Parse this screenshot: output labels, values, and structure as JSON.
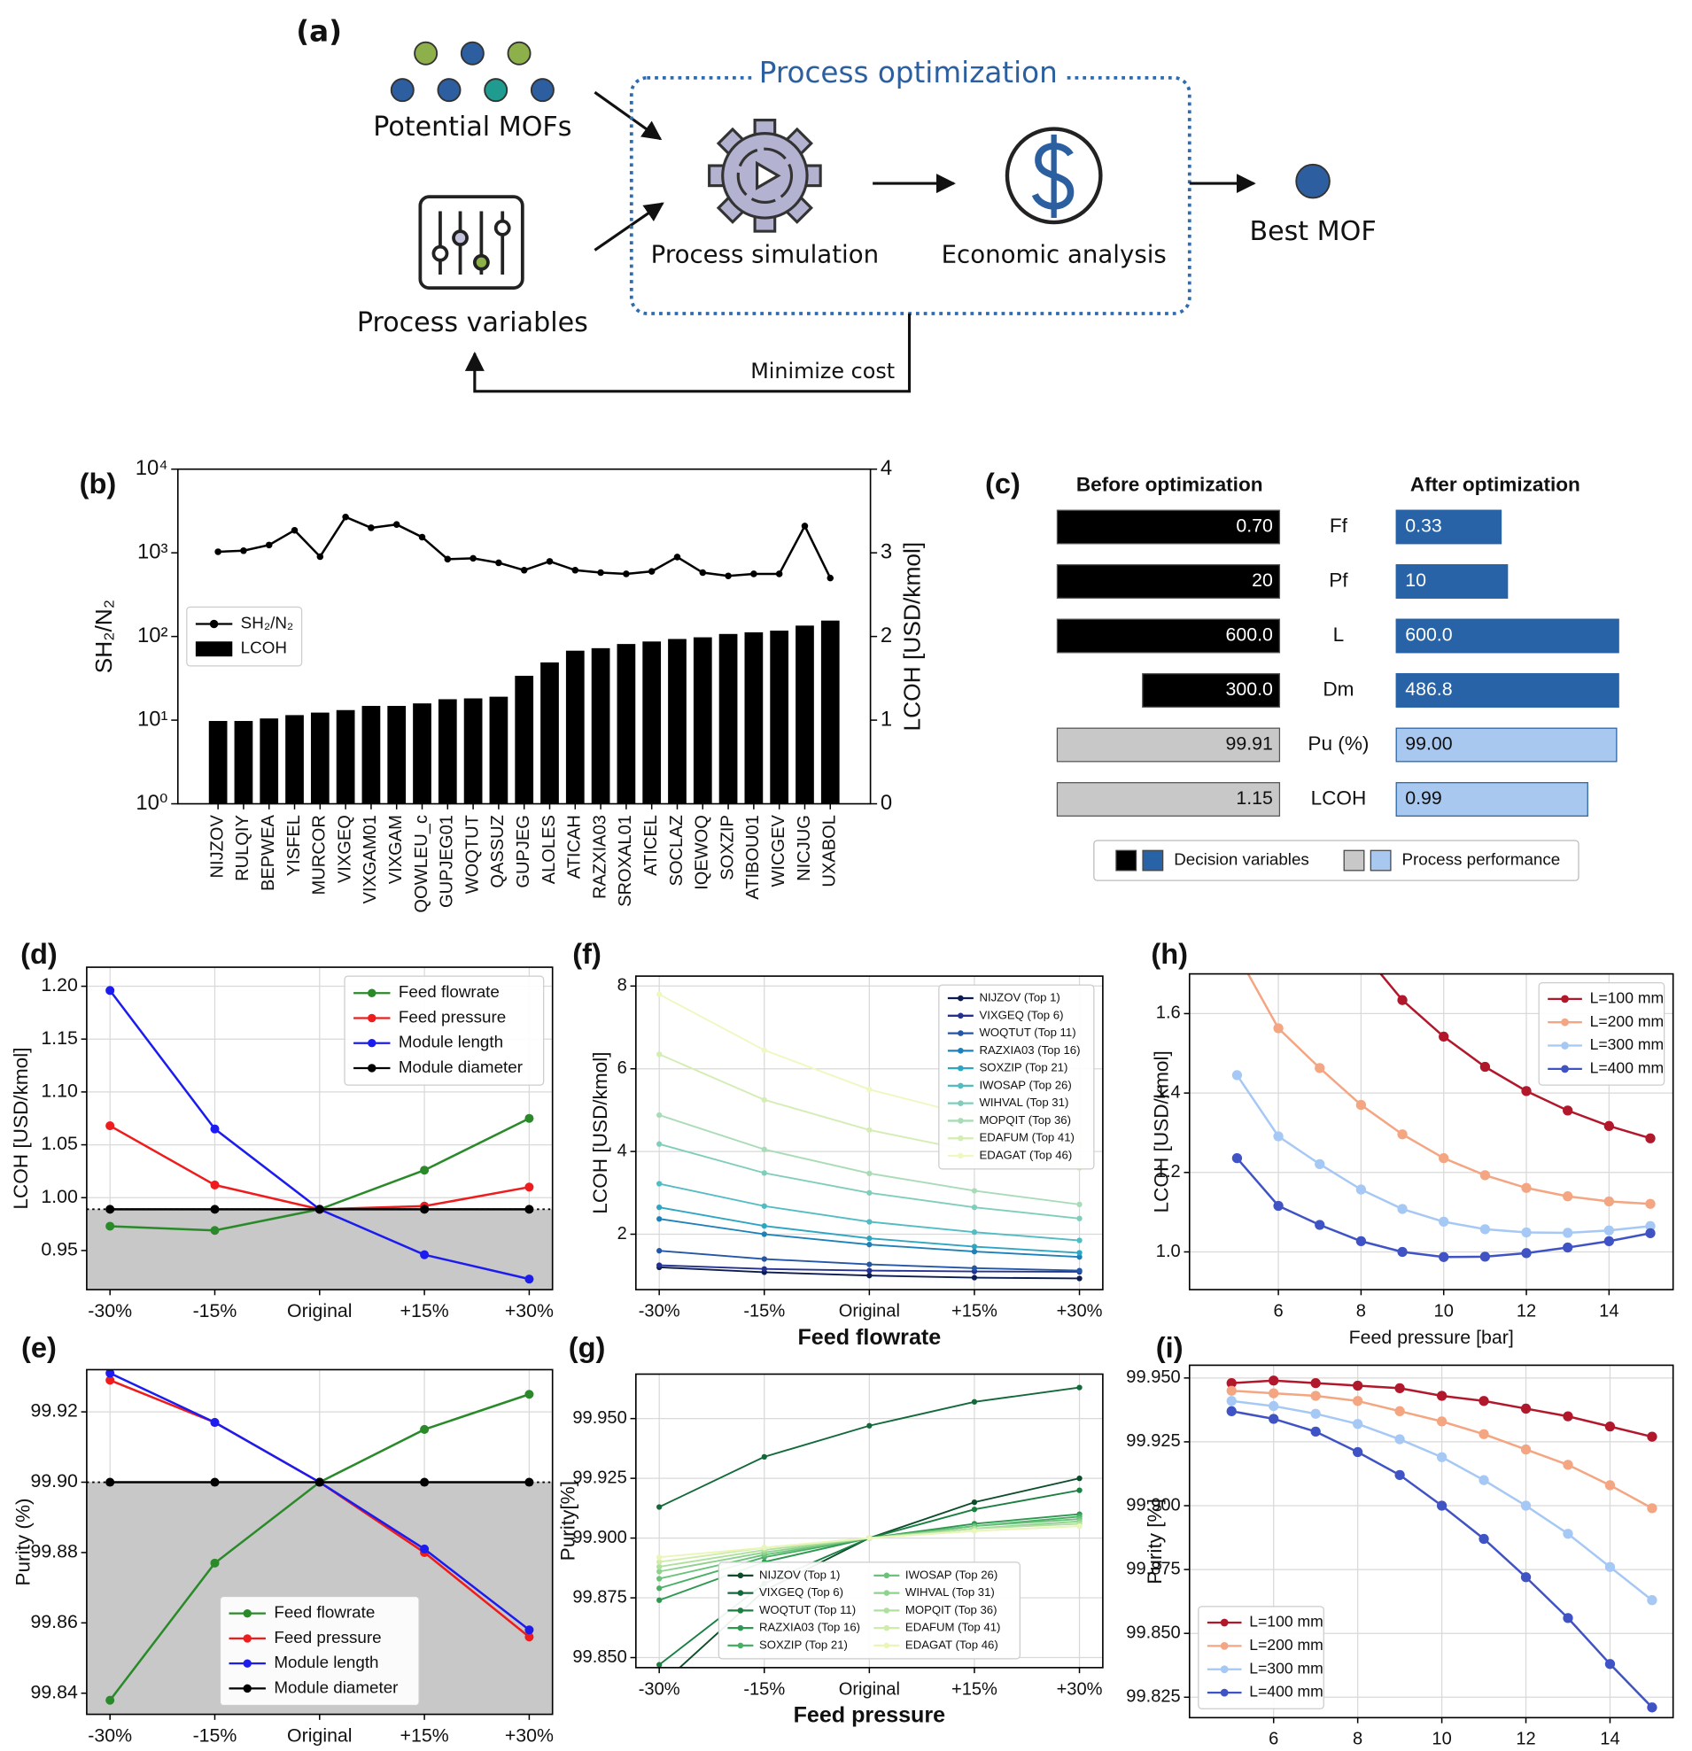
{
  "diagram": {
    "panel_label": "(a)",
    "group_title": "Process optimization",
    "inputs": [
      "Potential MOFs",
      "Process variables"
    ],
    "steps": [
      "Process simulation",
      "Economic analysis"
    ],
    "output": "Best MOF",
    "feedback": "Minimize cost"
  },
  "chart_data": [
    {
      "type": "combo",
      "label": "(b)",
      "categories": [
        "NIJZOV",
        "RULQIY",
        "BEPWEA",
        "YISFEL",
        "MURCOR",
        "VIXGEQ",
        "VIXGAM01",
        "VIXGAM",
        "QOWLEU_c",
        "GUPJEG01",
        "WOQTUT",
        "QASSUZ",
        "GUPJEG",
        "ALOLES",
        "ATICAH",
        "RAZXIA03",
        "SROXAL01",
        "ATICEL",
        "SOCLAZ",
        "IQEWOQ",
        "SOXZIP",
        "ATIBOU01",
        "WICGEV",
        "NICJUG",
        "UXABOL"
      ],
      "series": [
        {
          "name": "SH₂/N₂",
          "mark": "line",
          "color": "#000000",
          "values": [
            1030,
            1060,
            1240,
            1860,
            900,
            2680,
            1990,
            2180,
            1540,
            840,
            860,
            760,
            620,
            790,
            620,
            580,
            560,
            600,
            890,
            580,
            530,
            560,
            560,
            2090,
            500
          ]
        },
        {
          "name": "LCOH",
          "mark": "bar",
          "axis": "y2",
          "color": "#000000",
          "values": [
            0.99,
            0.99,
            1.02,
            1.06,
            1.09,
            1.12,
            1.17,
            1.17,
            1.2,
            1.25,
            1.26,
            1.28,
            1.53,
            1.69,
            1.83,
            1.86,
            1.91,
            1.94,
            1.97,
            1.99,
            2.03,
            2.05,
            2.07,
            2.13,
            2.19
          ]
        }
      ],
      "ylabel": "SH₂/N₂",
      "y2label": "LCOH [USD/kmol]",
      "ylog": true,
      "ylim": [
        1,
        10000
      ],
      "yticks": [
        {
          "value": 1,
          "label": "10⁰"
        },
        {
          "value": 10,
          "label": "10¹"
        },
        {
          "value": 100,
          "label": "10²"
        },
        {
          "value": 1000,
          "label": "10³"
        },
        {
          "value": 10000,
          "label": "10⁴"
        }
      ],
      "y2lim": [
        0,
        4
      ],
      "y2ticks": [
        0,
        1,
        2,
        3,
        4
      ],
      "legend": "center left"
    },
    {
      "type": "paired_bar",
      "label": "(c)",
      "categories": [
        "Ff",
        "Pf",
        "L",
        "Dm",
        "Pu (%)",
        "LCOH"
      ],
      "series": [
        {
          "name": "Before optimization",
          "values": [
            0.7,
            20,
            600.0,
            300.0,
            99.91,
            1.15
          ],
          "value_labels": [
            "0.70",
            "20",
            "600.0",
            "300.0",
            "99.91",
            "1.15"
          ],
          "colors": [
            "#000000",
            "#000000",
            "#000000",
            "#000000",
            "#c8c8c8",
            "#c8c8c8"
          ]
        },
        {
          "name": "After optimization",
          "values": [
            0.33,
            10,
            600.0,
            486.8,
            99.0,
            0.99
          ],
          "value_labels": [
            "0.33",
            "10",
            "600.0",
            "486.8",
            "99.00",
            "0.99"
          ],
          "colors": [
            "#2763a6",
            "#2763a6",
            "#2763a6",
            "#2763a6",
            "#a8c8ef",
            "#a8c8ef"
          ]
        }
      ],
      "legend_items": [
        {
          "name": "Decision variables",
          "colors": [
            "#000000",
            "#2763a6"
          ]
        },
        {
          "name": "Process performance",
          "colors": [
            "#c8c8c8",
            "#a8c8ef"
          ]
        }
      ]
    },
    {
      "type": "line",
      "label": "(d)",
      "categories": [
        "-30%",
        "-15%",
        "Original",
        "+15%",
        "+30%"
      ],
      "series": [
        {
          "name": "Feed flowrate",
          "color": "#2a8a2a",
          "values": [
            0.973,
            0.969,
            0.989,
            1.026,
            1.075
          ]
        },
        {
          "name": "Feed pressure",
          "color": "#ee1c1c",
          "values": [
            1.068,
            1.012,
            0.989,
            0.992,
            1.01
          ]
        },
        {
          "name": "Module length",
          "color": "#1c1cee",
          "values": [
            1.196,
            1.065,
            0.989,
            0.946,
            0.923
          ]
        },
        {
          "name": "Module diameter",
          "color": "#000000",
          "values": [
            0.989,
            0.989,
            0.989,
            0.989,
            0.989
          ]
        }
      ],
      "ylabel": "LCOH [USD/kmol]",
      "ylim": [
        0.913,
        1.218
      ],
      "yticks": [
        0.95,
        {
          "value": 1.0,
          "label": "1.00"
        },
        1.05,
        {
          "value": 1.1,
          "label": "1.10"
        },
        1.15,
        {
          "value": 1.2,
          "label": "1.20"
        }
      ],
      "grid": true,
      "shaded": true,
      "legend": "upper right"
    },
    {
      "type": "line",
      "label": "(e)",
      "categories": [
        "-30%",
        "-15%",
        "Original",
        "+15%",
        "+30%"
      ],
      "series": [
        {
          "name": "Feed flowrate",
          "color": "#2a8a2a",
          "values": [
            99.838,
            99.877,
            99.9,
            99.915,
            99.925
          ]
        },
        {
          "name": "Feed pressure",
          "color": "#ee1c1c",
          "values": [
            99.929,
            99.917,
            99.9,
            99.88,
            99.856
          ]
        },
        {
          "name": "Module length",
          "color": "#1c1cee",
          "values": [
            99.931,
            99.917,
            99.9,
            99.881,
            99.858
          ]
        },
        {
          "name": "Module diameter",
          "color": "#000000",
          "values": [
            99.9,
            99.9,
            99.9,
            99.9,
            99.9
          ]
        }
      ],
      "ylabel": "Purity (%)",
      "ylim": [
        99.834,
        99.932
      ],
      "yticks": [
        99.84,
        99.86,
        99.88,
        {
          "value": 99.9,
          "label": "99.90"
        },
        99.92
      ],
      "grid": true,
      "shaded": true,
      "legend": "lower center"
    },
    {
      "type": "line",
      "label": "(f)",
      "categories": [
        "-30%",
        "-15%",
        "Original",
        "+15%",
        "+30%"
      ],
      "series": [
        {
          "name": "NIJZOV (Top 1)",
          "color": "#0c1b50",
          "values": [
            1.2,
            1.08,
            1.0,
            0.95,
            0.93
          ]
        },
        {
          "name": "VIXGEQ (Top 6)",
          "color": "#24318f",
          "values": [
            1.25,
            1.16,
            1.12,
            1.1,
            1.09
          ]
        },
        {
          "name": "WOQTUT (Top 11)",
          "color": "#2356a6",
          "values": [
            1.6,
            1.4,
            1.27,
            1.18,
            1.12
          ]
        },
        {
          "name": "RAZXIA03 (Top 16)",
          "color": "#1e80b8",
          "values": [
            2.37,
            2.0,
            1.75,
            1.58,
            1.45
          ]
        },
        {
          "name": "SOXZIP (Top 21)",
          "color": "#2fa5c2",
          "values": [
            2.65,
            2.2,
            1.9,
            1.7,
            1.55
          ]
        },
        {
          "name": "IWOSAP (Top 26)",
          "color": "#52bcc2",
          "values": [
            3.22,
            2.68,
            2.3,
            2.05,
            1.85
          ]
        },
        {
          "name": "WIHVAL (Top 31)",
          "color": "#80cdbb",
          "values": [
            4.18,
            3.48,
            3.0,
            2.65,
            2.38
          ]
        },
        {
          "name": "MOPQIT (Top 36)",
          "color": "#a9dcb6",
          "values": [
            4.88,
            4.05,
            3.47,
            3.05,
            2.72
          ]
        },
        {
          "name": "EDAFUM (Top 41)",
          "color": "#d3edb3",
          "values": [
            6.35,
            5.25,
            4.52,
            4.0,
            3.6
          ]
        },
        {
          "name": "EDAGAT (Top 46)",
          "color": "#eef8c0",
          "values": [
            7.8,
            6.45,
            5.5,
            4.85,
            4.35
          ]
        }
      ],
      "xlabel": "Feed flowrate",
      "ylabel": "LCOH [USD/kmol]",
      "ylim": [
        0.66,
        8.24
      ],
      "yticks": [
        2,
        4,
        6,
        8
      ],
      "grid": true,
      "legend": "upper right"
    },
    {
      "type": "line",
      "label": "(g)",
      "categories": [
        "-30%",
        "-15%",
        "Original",
        "+15%",
        "+30%"
      ],
      "series": [
        {
          "name": "NIJZOV (Top 1)",
          "color": "#0b4d2a",
          "values": [
            99.838,
            99.878,
            99.9,
            99.915,
            99.925
          ]
        },
        {
          "name": "VIXGEQ (Top 6)",
          "color": "#13693a",
          "values": [
            99.913,
            99.934,
            99.947,
            99.957,
            99.963
          ]
        },
        {
          "name": "WOQTUT (Top 11)",
          "color": "#1a7f41",
          "values": [
            99.847,
            99.881,
            99.9,
            99.912,
            99.92
          ]
        },
        {
          "name": "RAZXIA03 (Top 16)",
          "color": "#2e9850",
          "values": [
            99.874,
            99.89,
            99.9,
            99.906,
            99.91
          ]
        },
        {
          "name": "SOXZIP (Top 21)",
          "color": "#48b064",
          "values": [
            99.879,
            99.892,
            99.9,
            99.905,
            99.909
          ]
        },
        {
          "name": "IWOSAP (Top 26)",
          "color": "#6cc27b",
          "values": [
            99.883,
            99.893,
            99.9,
            99.905,
            99.908
          ]
        },
        {
          "name": "WIHVAL (Top 31)",
          "color": "#8fd28e",
          "values": [
            99.886,
            99.894,
            99.9,
            99.904,
            99.907
          ]
        },
        {
          "name": "MOPQIT (Top 36)",
          "color": "#b0e0a0",
          "values": [
            99.888,
            99.895,
            99.9,
            99.904,
            99.906
          ]
        },
        {
          "name": "EDAFUM (Top 41)",
          "color": "#cfeca9",
          "values": [
            99.89,
            99.896,
            99.9,
            99.903,
            99.905
          ]
        },
        {
          "name": "EDAGAT (Top 46)",
          "color": "#e9f6b8",
          "values": [
            99.892,
            99.896,
            99.9,
            99.903,
            99.905
          ]
        }
      ],
      "xlabel": "Feed pressure",
      "ylabel": "Purity[%]",
      "ylim": [
        99.8458,
        99.9686
      ],
      "yticks": [
        {
          "value": 99.85,
          "label": "99.850"
        },
        99.875,
        {
          "value": 99.9,
          "label": "99.900"
        },
        99.925,
        {
          "value": 99.95,
          "label": "99.950"
        }
      ],
      "grid": true,
      "legend": "lower center",
      "legend_columns": 2
    },
    {
      "type": "line",
      "label": "(h)",
      "x": [
        5,
        6,
        7,
        8,
        9,
        10,
        11,
        12,
        13,
        14,
        15
      ],
      "series": [
        {
          "name": "L=100 mm",
          "color": "#b2182b",
          "values": [
            null,
            null,
            null,
            1.76,
            1.634,
            1.542,
            1.466,
            1.405,
            1.356,
            1.317,
            1.286
          ]
        },
        {
          "name": "L=200 mm",
          "color": "#f4a582",
          "values": [
            1.75,
            1.563,
            1.463,
            1.37,
            1.296,
            1.236,
            1.193,
            1.161,
            1.14,
            1.127,
            1.121
          ]
        },
        {
          "name": "L=300 mm",
          "color": "#a6c8f5",
          "values": [
            1.445,
            1.291,
            1.221,
            1.157,
            1.108,
            1.076,
            1.057,
            1.049,
            1.048,
            1.054,
            1.065
          ]
        },
        {
          "name": "L=400 mm",
          "color": "#4053c4",
          "values": [
            1.236,
            1.116,
            1.068,
            1.027,
            1.0,
            0.987,
            0.988,
            0.997,
            1.011,
            1.027,
            1.047
          ]
        }
      ],
      "xlabel": "Feed pressure [bar]",
      "ylabel": "LCOH [USD/kmol]",
      "xlim": [
        3.85,
        15.55
      ],
      "xticks": [
        6,
        8,
        10,
        12,
        14
      ],
      "ylim": [
        0.905,
        1.7
      ],
      "yticks": [
        {
          "value": 1.0,
          "label": "1.0"
        },
        1.2,
        1.4,
        1.6
      ],
      "grid": true,
      "legend": "upper right"
    },
    {
      "type": "line",
      "label": "(i)",
      "x": [
        5,
        6,
        7,
        8,
        9,
        10,
        11,
        12,
        13,
        14,
        15
      ],
      "series": [
        {
          "name": "L=100 mm",
          "color": "#b2182b",
          "values": [
            99.948,
            99.949,
            99.948,
            99.947,
            99.946,
            99.943,
            99.941,
            99.938,
            99.935,
            99.931,
            99.927
          ]
        },
        {
          "name": "L=200 mm",
          "color": "#f4a582",
          "values": [
            99.945,
            99.944,
            99.943,
            99.941,
            99.937,
            99.933,
            99.928,
            99.922,
            99.916,
            99.908,
            99.899
          ]
        },
        {
          "name": "L=300 mm",
          "color": "#a6c8f5",
          "values": [
            99.941,
            99.939,
            99.936,
            99.932,
            99.926,
            99.919,
            99.91,
            99.9,
            99.889,
            99.876,
            99.863
          ]
        },
        {
          "name": "L=400 mm",
          "color": "#4053c4",
          "values": [
            99.937,
            99.934,
            99.929,
            99.921,
            99.912,
            99.9,
            99.887,
            99.872,
            99.856,
            99.838,
            99.821
          ]
        }
      ],
      "xlabel": "Feed pressure [bar]",
      "ylabel": "Purity [%]",
      "xlim": [
        4.0,
        15.5
      ],
      "xticks": [
        6,
        8,
        10,
        12,
        14
      ],
      "ylim": [
        99.817,
        99.955
      ],
      "yticks": [
        99.825,
        {
          "value": 99.85,
          "label": "99.850"
        },
        99.875,
        {
          "value": 99.9,
          "label": "99.900"
        },
        99.925,
        {
          "value": 99.95,
          "label": "99.950"
        }
      ],
      "grid": true,
      "legend": "lower left"
    }
  ]
}
